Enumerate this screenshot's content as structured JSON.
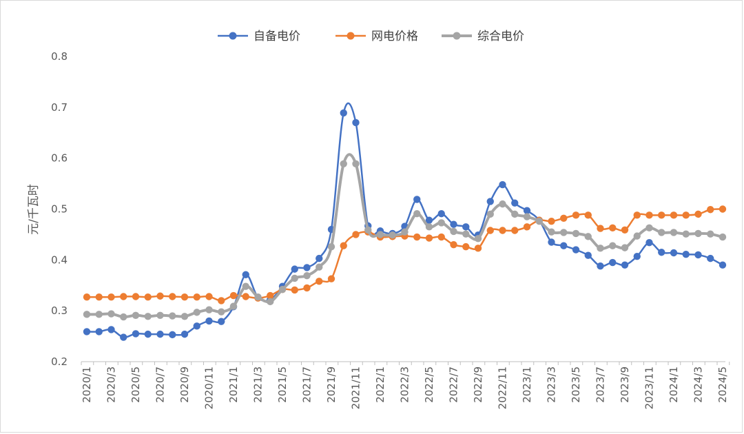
{
  "chart_data": {
    "type": "line",
    "title": "",
    "xlabel": "",
    "ylabel": "元/千瓦时",
    "ylim": [
      0.2,
      0.8
    ],
    "yticks": [
      0.2,
      0.3,
      0.4,
      0.5,
      0.6,
      0.7,
      0.8
    ],
    "ytick_labels": [
      "0.2",
      "0.3",
      "0.4",
      "0.5",
      "0.6",
      "0.7",
      "0.8"
    ],
    "grid": false,
    "legend_position": "top-center",
    "x": [
      "2020/1",
      "2020/2",
      "2020/3",
      "2020/4",
      "2020/5",
      "2020/6",
      "2020/7",
      "2020/8",
      "2020/9",
      "2020/10",
      "2020/11",
      "2020/12",
      "2021/1",
      "2021/2",
      "2021/3",
      "2021/4",
      "2021/5",
      "2021/6",
      "2021/7",
      "2021/8",
      "2021/9",
      "2021/10",
      "2021/11",
      "2021/12",
      "2022/1",
      "2022/2",
      "2022/3",
      "2022/4",
      "2022/5",
      "2022/6",
      "2022/7",
      "2022/8",
      "2022/9",
      "2022/10",
      "2022/11",
      "2022/12",
      "2023/1",
      "2023/2",
      "2023/3",
      "2023/4",
      "2023/5",
      "2023/6",
      "2023/7",
      "2023/8",
      "2023/9",
      "2023/10",
      "2023/11",
      "2023/12",
      "2024/1",
      "2024/2",
      "2024/3",
      "2024/4",
      "2024/5"
    ],
    "x_tick_labels": [
      "2020/1",
      "2020/3",
      "2020/5",
      "2020/7",
      "2020/9",
      "2020/11",
      "2021/1",
      "2021/3",
      "2021/5",
      "2021/7",
      "2021/9",
      "2021/11",
      "2022/1",
      "2022/3",
      "2022/5",
      "2022/7",
      "2022/9",
      "2022/11",
      "2023/1",
      "2023/3",
      "2023/5",
      "2023/7",
      "2023/9",
      "2023/11",
      "2024/1",
      "2024/3",
      "2024/5"
    ],
    "series": [
      {
        "name": "自备电价",
        "color": "#4472C4",
        "values": [
          0.259,
          0.259,
          0.263,
          0.248,
          0.255,
          0.254,
          0.254,
          0.253,
          0.254,
          0.27,
          0.28,
          0.279,
          0.308,
          0.371,
          0.326,
          0.322,
          0.348,
          0.382,
          0.385,
          0.403,
          0.46,
          0.689,
          0.67,
          0.467,
          0.457,
          0.452,
          0.466,
          0.519,
          0.478,
          0.491,
          0.47,
          0.465,
          0.449,
          0.515,
          0.548,
          0.512,
          0.497,
          0.478,
          0.435,
          0.428,
          0.42,
          0.409,
          0.388,
          0.395,
          0.39,
          0.407,
          0.434,
          0.415,
          0.414,
          0.411,
          0.41,
          0.403,
          0.39
        ]
      },
      {
        "name": "网电价格",
        "color": "#ED7D31",
        "values": [
          0.327,
          0.327,
          0.327,
          0.328,
          0.328,
          0.327,
          0.329,
          0.328,
          0.327,
          0.327,
          0.328,
          0.32,
          0.33,
          0.328,
          0.325,
          0.33,
          0.342,
          0.341,
          0.345,
          0.358,
          0.363,
          0.428,
          0.45,
          0.455,
          0.445,
          0.446,
          0.447,
          0.445,
          0.443,
          0.445,
          0.43,
          0.426,
          0.423,
          0.458,
          0.458,
          0.458,
          0.465,
          0.478,
          0.476,
          0.482,
          0.488,
          0.488,
          0.462,
          0.463,
          0.459,
          0.488,
          0.488,
          0.488,
          0.488,
          0.488,
          0.49,
          0.499,
          0.5
        ]
      },
      {
        "name": "综合电价",
        "color": "#A5A5A5",
        "values": [
          0.293,
          0.293,
          0.294,
          0.288,
          0.291,
          0.289,
          0.291,
          0.29,
          0.289,
          0.297,
          0.302,
          0.298,
          0.309,
          0.348,
          0.327,
          0.318,
          0.342,
          0.364,
          0.369,
          0.386,
          0.426,
          0.589,
          0.589,
          0.459,
          0.45,
          0.449,
          0.455,
          0.491,
          0.465,
          0.473,
          0.456,
          0.451,
          0.442,
          0.49,
          0.51,
          0.49,
          0.485,
          0.476,
          0.455,
          0.454,
          0.452,
          0.446,
          0.423,
          0.428,
          0.424,
          0.447,
          0.463,
          0.454,
          0.454,
          0.451,
          0.452,
          0.451,
          0.445
        ]
      }
    ]
  }
}
